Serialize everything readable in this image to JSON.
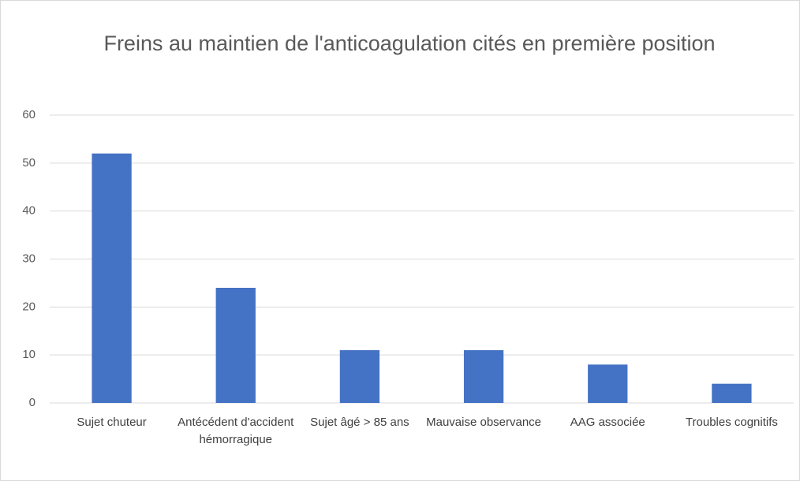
{
  "chart_data": {
    "type": "bar",
    "title": "Freins au maintien de l'anticoagulation cités en première position",
    "categories": [
      "Sujet chuteur",
      "Antécédent d'accident hémorragique",
      "Sujet âgé > 85 ans",
      "Mauvaise observance",
      "AAG associée",
      "Troubles cognitifs"
    ],
    "values": [
      52,
      24,
      11,
      11,
      8,
      4
    ],
    "color": "#4472c4",
    "ylim": [
      0,
      60
    ],
    "yticks": [
      0,
      10,
      20,
      30,
      40,
      50,
      60
    ],
    "grid": true
  }
}
